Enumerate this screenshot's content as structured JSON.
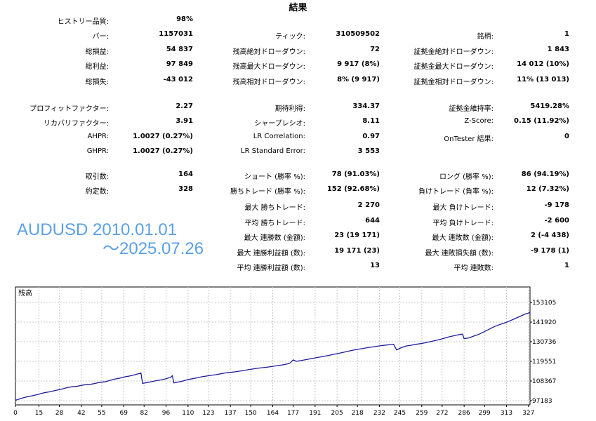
{
  "title": "結果",
  "stats": [
    {
      "row": 0,
      "col": 0,
      "label": "ヒストリー品質:",
      "value": "98%"
    },
    {
      "row": 1,
      "col": 0,
      "label": "バー:",
      "value": "1157031"
    },
    {
      "row": 1,
      "col": 1,
      "label": "ティック:",
      "value": "310509502"
    },
    {
      "row": 1,
      "col": 2,
      "label": "銘柄:",
      "value": "1"
    },
    {
      "row": 2,
      "col": 0,
      "label": "総損益:",
      "value": "54 837"
    },
    {
      "row": 2,
      "col": 1,
      "label": "残高絶対ドローダウン:",
      "value": "72"
    },
    {
      "row": 2,
      "col": 2,
      "label": "証拠金絶対ドローダウン:",
      "value": "1 843"
    },
    {
      "row": 3,
      "col": 0,
      "label": "総利益:",
      "value": "97 849"
    },
    {
      "row": 3,
      "col": 1,
      "label": "残高最大ドローダウン:",
      "value": "9 917 (8%)"
    },
    {
      "row": 3,
      "col": 2,
      "label": "証拠金最大ドローダウン:",
      "value": "14 012 (10%)"
    },
    {
      "row": 4,
      "col": 0,
      "label": "総損失:",
      "value": "-43 012"
    },
    {
      "row": 4,
      "col": 1,
      "label": "残高相対ドローダウン:",
      "value": "8% (9 917)"
    },
    {
      "row": 4,
      "col": 2,
      "label": "証拠金相対ドローダウン:",
      "value": "11% (13 013)"
    },
    {
      "row": 5,
      "col": 0,
      "label": "プロフィットファクター:",
      "value": "2.27"
    },
    {
      "row": 5,
      "col": 1,
      "label": "期待利得:",
      "value": "334.37"
    },
    {
      "row": 5,
      "col": 2,
      "label": "証拠金維持率:",
      "value": "5419.28%"
    },
    {
      "row": 6,
      "col": 0,
      "label": "リカバリファクター:",
      "value": "3.91"
    },
    {
      "row": 6,
      "col": 1,
      "label": "シャープレシオ:",
      "value": "8.11"
    },
    {
      "row": 6,
      "col": 2,
      "label": "Z-Score:",
      "value": "0.15 (11.92%)"
    },
    {
      "row": 7,
      "col": 0,
      "label": "AHPR:",
      "value": "1.0027 (0.27%)"
    },
    {
      "row": 7,
      "col": 1,
      "label": "LR Correlation:",
      "value": "0.97"
    },
    {
      "row": 7,
      "col": 2,
      "label": "OnTester 結果:",
      "value": "0"
    },
    {
      "row": 8,
      "col": 0,
      "label": "GHPR:",
      "value": "1.0027 (0.27%)"
    },
    {
      "row": 8,
      "col": 1,
      "label": "LR Standard Error:",
      "value": "3 553"
    },
    {
      "row": 9,
      "col": 0,
      "label": "取引数:",
      "value": "164"
    },
    {
      "row": 9,
      "col": 1,
      "label": "ショート (勝率 %):",
      "value": "78 (91.03%)"
    },
    {
      "row": 9,
      "col": 2,
      "label": "ロング (勝率 %):",
      "value": "86 (94.19%)"
    },
    {
      "row": 10,
      "col": 0,
      "label": "約定数:",
      "value": "328"
    },
    {
      "row": 10,
      "col": 1,
      "label": "勝ちトレード (勝率 %):",
      "value": "152 (92.68%)"
    },
    {
      "row": 10,
      "col": 2,
      "label": "負けトレード (負率 %):",
      "value": "12 (7.32%)"
    },
    {
      "row": 11,
      "col": 1,
      "label": "最大 勝ちトレード:",
      "value": "2 270"
    },
    {
      "row": 11,
      "col": 2,
      "label": "最大 負けトレード:",
      "value": "-9 178"
    },
    {
      "row": 12,
      "col": 1,
      "label": "平均 勝ちトレード:",
      "value": "644"
    },
    {
      "row": 12,
      "col": 2,
      "label": "平均 負けトレード:",
      "value": "-2 600"
    },
    {
      "row": 13,
      "col": 1,
      "label": "最大 連勝数 (金額):",
      "value": "23 (19 171)"
    },
    {
      "row": 13,
      "col": 2,
      "label": "最大 連敗数 (金額):",
      "value": "2 (-4 438)"
    },
    {
      "row": 14,
      "col": 1,
      "label": "最大 連勝利益額 (数):",
      "value": "19 171 (23)"
    },
    {
      "row": 14,
      "col": 2,
      "label": "最大 連敗損失額 (数):",
      "value": "-9 178 (1)"
    },
    {
      "row": 15,
      "col": 1,
      "label": "平均 連勝利益額 (数):",
      "value": "13"
    },
    {
      "row": 15,
      "col": 2,
      "label": "平均 連敗数:",
      "value": "1"
    }
  ],
  "overlay": {
    "line1": "AUDUSD 2010.01.01",
    "line2": "～2025.07.26"
  },
  "chart_data": {
    "type": "line",
    "title": "残高",
    "x_ticks": [
      "0",
      "15",
      "28",
      "42",
      "55",
      "69",
      "82",
      "96",
      "110",
      "123",
      "137",
      "150",
      "164",
      "177",
      "191",
      "205",
      "218",
      "232",
      "245",
      "259",
      "272",
      "286",
      "299",
      "313",
      "327"
    ],
    "y_ticks": [
      "153105",
      "141920",
      "130736",
      "119551",
      "108367",
      "97183"
    ],
    "ylim": [
      97183,
      153105
    ],
    "xlim": [
      0,
      328
    ],
    "color": "#1c1c9c",
    "grid": true,
    "series": [
      {
        "points": [
          [
            0,
            97400
          ],
          [
            3,
            98300
          ],
          [
            6,
            99100
          ],
          [
            9,
            99600
          ],
          [
            12,
            100200
          ],
          [
            15,
            100900
          ],
          [
            18,
            101600
          ],
          [
            21,
            102100
          ],
          [
            24,
            102700
          ],
          [
            27,
            103300
          ],
          [
            30,
            103900
          ],
          [
            33,
            104600
          ],
          [
            36,
            105100
          ],
          [
            39,
            105300
          ],
          [
            42,
            105900
          ],
          [
            45,
            106300
          ],
          [
            48,
            106500
          ],
          [
            51,
            107000
          ],
          [
            54,
            107700
          ],
          [
            57,
            107900
          ],
          [
            60,
            108700
          ],
          [
            63,
            109400
          ],
          [
            66,
            109900
          ],
          [
            69,
            110600
          ],
          [
            72,
            111100
          ],
          [
            75,
            111700
          ],
          [
            78,
            112400
          ],
          [
            80,
            112900
          ],
          [
            81,
            107000
          ],
          [
            84,
            107500
          ],
          [
            87,
            108000
          ],
          [
            90,
            108600
          ],
          [
            93,
            109000
          ],
          [
            96,
            109700
          ],
          [
            99,
            110500
          ],
          [
            100,
            111400
          ],
          [
            101,
            107300
          ],
          [
            104,
            107800
          ],
          [
            107,
            108400
          ],
          [
            110,
            109200
          ],
          [
            113,
            109700
          ],
          [
            116,
            110200
          ],
          [
            119,
            110800
          ],
          [
            122,
            111200
          ],
          [
            125,
            111600
          ],
          [
            128,
            112000
          ],
          [
            131,
            112500
          ],
          [
            134,
            113000
          ],
          [
            137,
            113300
          ],
          [
            140,
            113600
          ],
          [
            143,
            114000
          ],
          [
            146,
            114400
          ],
          [
            149,
            114900
          ],
          [
            152,
            115300
          ],
          [
            155,
            115700
          ],
          [
            158,
            116000
          ],
          [
            161,
            116300
          ],
          [
            164,
            116700
          ],
          [
            167,
            117100
          ],
          [
            170,
            117500
          ],
          [
            173,
            118000
          ],
          [
            175,
            118600
          ],
          [
            177,
            120400
          ],
          [
            179,
            119600
          ],
          [
            182,
            120000
          ],
          [
            185,
            120500
          ],
          [
            188,
            121000
          ],
          [
            191,
            121500
          ],
          [
            194,
            122000
          ],
          [
            197,
            122500
          ],
          [
            200,
            123000
          ],
          [
            203,
            123600
          ],
          [
            206,
            124100
          ],
          [
            209,
            124700
          ],
          [
            212,
            125300
          ],
          [
            215,
            125900
          ],
          [
            218,
            126400
          ],
          [
            221,
            126800
          ],
          [
            224,
            127300
          ],
          [
            227,
            127700
          ],
          [
            230,
            128100
          ],
          [
            233,
            128500
          ],
          [
            236,
            128800
          ],
          [
            239,
            129100
          ],
          [
            241,
            129300
          ],
          [
            243,
            126100
          ],
          [
            246,
            127400
          ],
          [
            249,
            128300
          ],
          [
            252,
            128700
          ],
          [
            255,
            129200
          ],
          [
            258,
            129600
          ],
          [
            261,
            130100
          ],
          [
            264,
            130700
          ],
          [
            267,
            131300
          ],
          [
            270,
            131900
          ],
          [
            273,
            132600
          ],
          [
            276,
            133400
          ],
          [
            279,
            134000
          ],
          [
            282,
            134600
          ],
          [
            285,
            135100
          ],
          [
            286,
            132500
          ],
          [
            289,
            132900
          ],
          [
            292,
            133900
          ],
          [
            295,
            134800
          ],
          [
            298,
            136100
          ],
          [
            301,
            137400
          ],
          [
            304,
            138800
          ],
          [
            307,
            140000
          ],
          [
            310,
            140900
          ],
          [
            313,
            141800
          ],
          [
            316,
            142900
          ],
          [
            319,
            144100
          ],
          [
            322,
            145300
          ],
          [
            325,
            146500
          ],
          [
            327,
            147000
          ],
          [
            328,
            147600
          ]
        ]
      }
    ]
  }
}
